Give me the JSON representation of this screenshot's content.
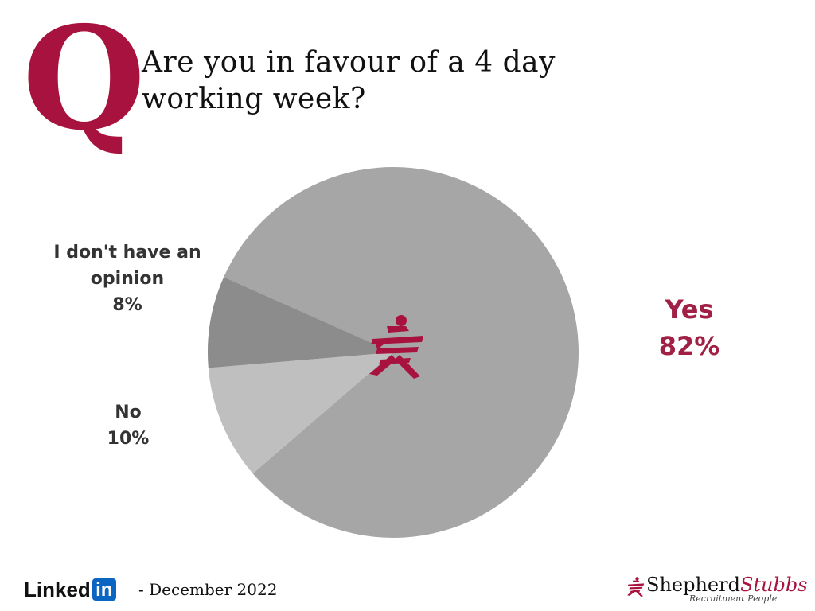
{
  "header": {
    "q_letter": "Q",
    "question_line1": "Are you in favour of a 4 day",
    "question_line2": "working week?"
  },
  "chart_data": {
    "type": "pie",
    "categories": [
      "Yes",
      "No",
      "I don't have an opinion"
    ],
    "values": [
      82,
      10,
      8
    ],
    "unit": "%",
    "colors": [
      "#a6a6a6",
      "#bfbfbf",
      "#8c8c8c"
    ],
    "labels": [
      {
        "category": "I don't have an opinion",
        "text_lines": [
          "I don't have an",
          "opinion"
        ],
        "percent": "8%"
      },
      {
        "category": "No",
        "text_lines": [
          "No"
        ],
        "percent": "10%"
      },
      {
        "category": "Yes",
        "text_lines": [
          "Yes"
        ],
        "percent": "82%"
      }
    ],
    "center_icon": "shepherd-stubbs-figure-icon"
  },
  "footer": {
    "linkedin_text": "Linked",
    "linkedin_box": "in",
    "date": "- December 2022"
  },
  "brand": {
    "name_part1": "Shepherd",
    "name_part2": "Stubbs",
    "tagline": "Recruitment People",
    "accent": "#a8123e"
  }
}
